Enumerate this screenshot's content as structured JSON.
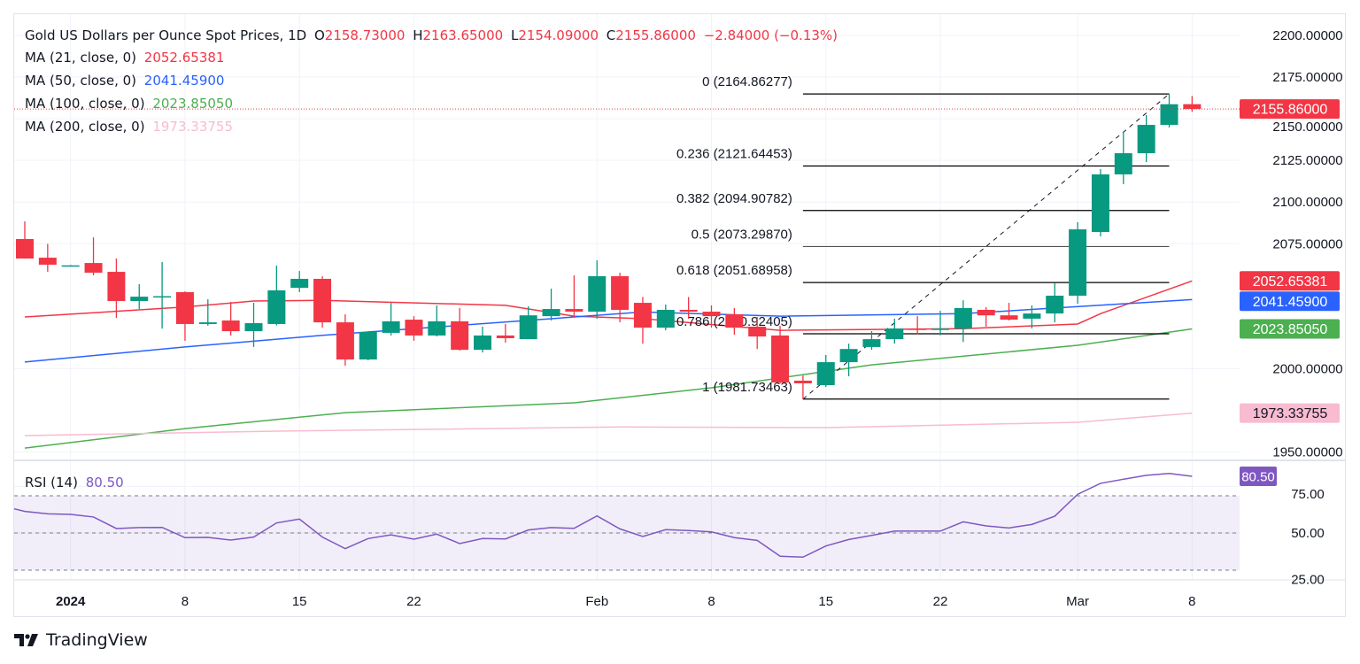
{
  "header": {
    "symbol": "Gold US Dollars per Ounce Spot Prices, 1D",
    "o_label": "O",
    "o": "2158.73000",
    "h_label": "H",
    "h": "2163.65000",
    "l_label": "L",
    "l": "2154.09000",
    "c_label": "C",
    "c": "2155.86000",
    "change": "−2.84000 (−0.13%)"
  },
  "indicators": [
    {
      "label": "MA (21, close, 0)",
      "value": "2052.65381",
      "color": "#f23645"
    },
    {
      "label": "MA (50, close, 0)",
      "value": "2041.45900",
      "color": "#2962ff"
    },
    {
      "label": "MA (100, close, 0)",
      "value": "2023.85050",
      "color": "#4caf50"
    },
    {
      "label": "MA (200, close, 0)",
      "value": "1973.33755",
      "color": "#f8bbd0"
    }
  ],
  "rsi_legend": {
    "label": "RSI (14)",
    "value": "80.50",
    "color": "#7e57c2"
  },
  "branding": {
    "name": "TradingView"
  },
  "colors": {
    "up": "#089981",
    "down": "#f23645",
    "rsi": "#7e57c2"
  },
  "chart_data": {
    "type": "candlestick",
    "interval": "1D",
    "price_axis": {
      "range": [
        1945,
        2205
      ],
      "ticks": [
        "2200.00000",
        "2175.00000",
        "2150.00000",
        "2125.00000",
        "2100.00000",
        "2075.00000",
        "2000.00000",
        "1950.00000"
      ],
      "tick_values": [
        2200,
        2175,
        2150,
        2125,
        2100,
        2075,
        2000,
        1950
      ],
      "grid": true
    },
    "time_axis": {
      "labels": [
        {
          "date": "2024-01-01",
          "text": "2024"
        },
        {
          "date": "2024-01-08",
          "text": "8"
        },
        {
          "date": "2024-01-15",
          "text": "15"
        },
        {
          "date": "2024-01-22",
          "text": "22"
        },
        {
          "date": "2024-02-01",
          "text": "Feb"
        },
        {
          "date": "2024-02-08",
          "text": "8"
        },
        {
          "date": "2024-02-15",
          "text": "15"
        },
        {
          "date": "2024-02-22",
          "text": "22"
        },
        {
          "date": "2024-03-01",
          "text": "Mar"
        },
        {
          "date": "2024-03-08",
          "text": "8"
        }
      ]
    },
    "candles": [
      [
        "2023-12-28",
        2077.8,
        2088.4,
        2066.0,
        2066.1
      ],
      [
        "2023-12-29",
        2066.6,
        2074.9,
        2058.1,
        2062.4
      ],
      [
        "2024-01-01",
        2061.8,
        2062.2,
        2061.4,
        2062.0
      ],
      [
        "2024-01-02",
        2063.4,
        2078.8,
        2056.0,
        2057.6
      ],
      [
        "2024-01-03",
        2058.1,
        2066.1,
        2030.5,
        2040.6
      ],
      [
        "2024-01-04",
        2040.6,
        2050.7,
        2035.8,
        2043.2
      ],
      [
        "2024-01-05",
        2043.0,
        2064.0,
        2024.0,
        2043.5
      ],
      [
        "2024-01-08",
        2045.9,
        2046.4,
        2016.7,
        2026.8
      ],
      [
        "2024-01-09",
        2026.8,
        2041.6,
        2025.8,
        2027.8
      ],
      [
        "2024-01-10",
        2028.9,
        2040.0,
        2019.9,
        2022.5
      ],
      [
        "2024-01-11",
        2022.5,
        2039.5,
        2013.0,
        2027.3
      ],
      [
        "2024-01-12",
        2026.8,
        2061.8,
        2026.0,
        2047.0
      ],
      [
        "2024-01-15",
        2048.5,
        2058.6,
        2045.9,
        2053.9
      ],
      [
        "2024-01-16",
        2053.9,
        2055.5,
        2024.6,
        2027.8
      ],
      [
        "2024-01-17",
        2027.8,
        2032.6,
        2001.8,
        2005.5
      ],
      [
        "2024-01-18",
        2005.5,
        2022.0,
        2005.0,
        2022.0
      ],
      [
        "2024-01-19",
        2021.5,
        2039.5,
        2019.9,
        2028.4
      ],
      [
        "2024-01-22",
        2029.4,
        2031.5,
        2016.7,
        2019.9
      ],
      [
        "2024-01-23",
        2019.9,
        2037.9,
        2019.3,
        2028.4
      ],
      [
        "2024-01-24",
        2028.4,
        2036.4,
        2010.8,
        2011.3
      ],
      [
        "2024-01-25",
        2011.3,
        2025.2,
        2009.7,
        2019.9
      ],
      [
        "2024-01-26",
        2019.9,
        2026.8,
        2015.6,
        2018.3
      ],
      [
        "2024-01-29",
        2017.7,
        2037.4,
        2017.7,
        2032.0
      ],
      [
        "2024-01-30",
        2031.5,
        2048.0,
        2028.9,
        2035.8
      ],
      [
        "2024-01-31",
        2035.8,
        2056.0,
        2031.0,
        2034.2
      ],
      [
        "2024-02-01",
        2034.2,
        2065.0,
        2029.9,
        2055.5
      ],
      [
        "2024-02-02",
        2055.5,
        2057.6,
        2027.8,
        2035.3
      ],
      [
        "2024-02-05",
        2039.5,
        2043.0,
        2015.0,
        2024.6
      ],
      [
        "2024-02-06",
        2024.6,
        2038.5,
        2023.0,
        2035.3
      ],
      [
        "2024-02-07",
        2035.3,
        2043.0,
        2030.0,
        2034.2
      ],
      [
        "2024-02-08",
        2034.2,
        2038.0,
        2024.6,
        2031.5
      ],
      [
        "2024-02-09",
        2032.6,
        2036.4,
        2020.4,
        2024.6
      ],
      [
        "2024-02-12",
        2025.2,
        2031.0,
        2011.8,
        2019.3
      ],
      [
        "2024-02-13",
        2019.9,
        2025.7,
        1991.0,
        1991.7
      ],
      [
        "2024-02-14",
        1992.8,
        1995.9,
        1981.7,
        1991.2
      ],
      [
        "2024-02-15",
        1990.1,
        2008.2,
        1989.0,
        2003.9
      ],
      [
        "2024-02-16",
        2003.9,
        2015.0,
        1995.4,
        2011.8
      ],
      [
        "2024-02-19",
        2013.0,
        2022.5,
        2011.3,
        2017.7
      ],
      [
        "2024-02-20",
        2017.7,
        2030.0,
        2015.0,
        2024.1
      ],
      [
        "2024-02-21",
        2024.0,
        2031.5,
        2020.4,
        2023.4
      ],
      [
        "2024-02-22",
        2023.4,
        2034.7,
        2020.0,
        2024.0
      ],
      [
        "2024-02-23",
        2024.0,
        2041.0,
        2016.0,
        2036.4
      ],
      [
        "2024-02-26",
        2035.3,
        2036.9,
        2025.2,
        2032.0
      ],
      [
        "2024-02-27",
        2032.0,
        2039.5,
        2028.9,
        2029.4
      ],
      [
        "2024-02-28",
        2030.0,
        2037.9,
        2024.1,
        2033.1
      ],
      [
        "2024-02-29",
        2033.1,
        2051.2,
        2027.8,
        2043.8
      ],
      [
        "2024-03-01",
        2043.8,
        2087.9,
        2039.0,
        2083.6
      ],
      [
        "2024-03-04",
        2082.0,
        2119.8,
        2079.4,
        2116.6
      ],
      [
        "2024-03-05",
        2116.6,
        2142.0,
        2110.7,
        2129.3
      ],
      [
        "2024-03-06",
        2129.3,
        2152.2,
        2124.0,
        2146.3
      ],
      [
        "2024-03-07",
        2146.3,
        2164.86,
        2144.7,
        2158.7
      ],
      [
        "2024-03-08",
        2158.73,
        2163.65,
        2154.09,
        2155.86
      ]
    ],
    "candle_fields": [
      "date",
      "open",
      "high",
      "low",
      "close"
    ],
    "moving_averages": [
      {
        "name": "MA 21",
        "color": "#f23645",
        "points": [
          [
            "2023-12-28",
            2031
          ],
          [
            "2024-01-08",
            2037
          ],
          [
            "2024-01-11",
            2040.6
          ],
          [
            "2024-01-16",
            2041
          ],
          [
            "2024-01-26",
            2038
          ],
          [
            "2024-01-31",
            2031.5
          ],
          [
            "2024-02-05",
            2030
          ],
          [
            "2024-02-13",
            2023
          ],
          [
            "2024-02-23",
            2024
          ],
          [
            "2024-03-01",
            2026.8
          ],
          [
            "2024-03-04",
            2033
          ],
          [
            "2024-03-08",
            2052.65
          ]
        ]
      },
      {
        "name": "MA 50",
        "color": "#2962ff",
        "points": [
          [
            "2023-12-28",
            2004
          ],
          [
            "2024-01-08",
            2013
          ],
          [
            "2024-01-16",
            2020
          ],
          [
            "2024-01-30",
            2030
          ],
          [
            "2024-02-05",
            2034
          ],
          [
            "2024-02-13",
            2031.5
          ],
          [
            "2024-02-23",
            2033
          ],
          [
            "2024-03-08",
            2041.46
          ]
        ]
      },
      {
        "name": "MA 100",
        "color": "#4caf50",
        "points": [
          [
            "2023-12-28",
            1952.3
          ],
          [
            "2024-01-08",
            1964
          ],
          [
            "2024-01-17",
            1973.6
          ],
          [
            "2024-01-31",
            1979.5
          ],
          [
            "2024-02-08",
            1988.5
          ],
          [
            "2024-02-19",
            2002.3
          ],
          [
            "2024-03-01",
            2014
          ],
          [
            "2024-03-08",
            2023.85
          ]
        ]
      },
      {
        "name": "MA 200",
        "color": "#f8bbd0",
        "points": [
          [
            "2023-12-28",
            1959.8
          ],
          [
            "2024-01-12",
            1962.5
          ],
          [
            "2024-02-02",
            1965
          ],
          [
            "2024-02-15",
            1964.6
          ],
          [
            "2024-03-01",
            1967.8
          ],
          [
            "2024-03-08",
            1973.34
          ]
        ]
      }
    ],
    "price_badges": [
      {
        "value": 2155.86,
        "text": "2155.86000",
        "color": "#f23645",
        "text_color": "#ffffff"
      },
      {
        "value": 2052.65381,
        "text": "2052.65381",
        "color": "#f23645",
        "text_color": "#ffffff"
      },
      {
        "value": 2041.459,
        "text": "2041.45900",
        "color": "#2962ff",
        "text_color": "#ffffff"
      },
      {
        "value": 2023.8505,
        "text": "2023.85050",
        "color": "#4caf50",
        "text_color": "#ffffff"
      },
      {
        "value": 1973.33755,
        "text": "1973.33755",
        "color": "#f8bbd0",
        "text_color": "#131722"
      }
    ],
    "last_price_line": 2155.86,
    "fibonacci": {
      "from": {
        "date": "2024-02-14",
        "price": 1981.73463
      },
      "to": {
        "date": "2024-03-07",
        "price": 2164.86277
      },
      "levels": [
        {
          "ratio": "0",
          "price": 2164.86277,
          "label": "0 (2164.86277)"
        },
        {
          "ratio": "0.236",
          "price": 2121.64453,
          "label": "0.236 (2121.64453)"
        },
        {
          "ratio": "0.382",
          "price": 2094.90782,
          "label": "0.382 (2094.90782)"
        },
        {
          "ratio": "0.5",
          "price": 2073.2987,
          "label": "0.5 (2073.29870)"
        },
        {
          "ratio": "0.618",
          "price": 2051.68958,
          "label": "0.618 (2051.68958)"
        },
        {
          "ratio": "0.786",
          "price": 2020.92405,
          "label": "0.786 (2020.92405)"
        },
        {
          "ratio": "1",
          "price": 1981.73463,
          "label": "1 (1981.73463)"
        }
      ]
    },
    "rsi": {
      "period": 14,
      "range": [
        20,
        90
      ],
      "bands": [
        70,
        30
      ],
      "midline": 50,
      "ticks": [
        "75.00",
        "50.00",
        "25.00"
      ],
      "tick_values": [
        75,
        50,
        25
      ],
      "last_badge": "80.50",
      "values": [
        61.6,
        60.3,
        60.0,
        58.6,
        52.4,
        52.9,
        53.0,
        47.5,
        47.6,
        46.2,
        47.8,
        55.4,
        57.5,
        47.8,
        41.6,
        47.0,
        49.0,
        46.7,
        49.4,
        44.3,
        47.0,
        46.8,
        51.6,
        52.9,
        52.5,
        59.2,
        52.2,
        48.1,
        51.8,
        51.3,
        50.6,
        47.5,
        46.0,
        37.5,
        37.0,
        43.0,
        46.5,
        48.7,
        51.0,
        51.0,
        51.0,
        56.0,
        53.8,
        52.7,
        54.6,
        59.0,
        70.8,
        76.7,
        78.9,
        81.0,
        82.0,
        80.5
      ]
    }
  }
}
